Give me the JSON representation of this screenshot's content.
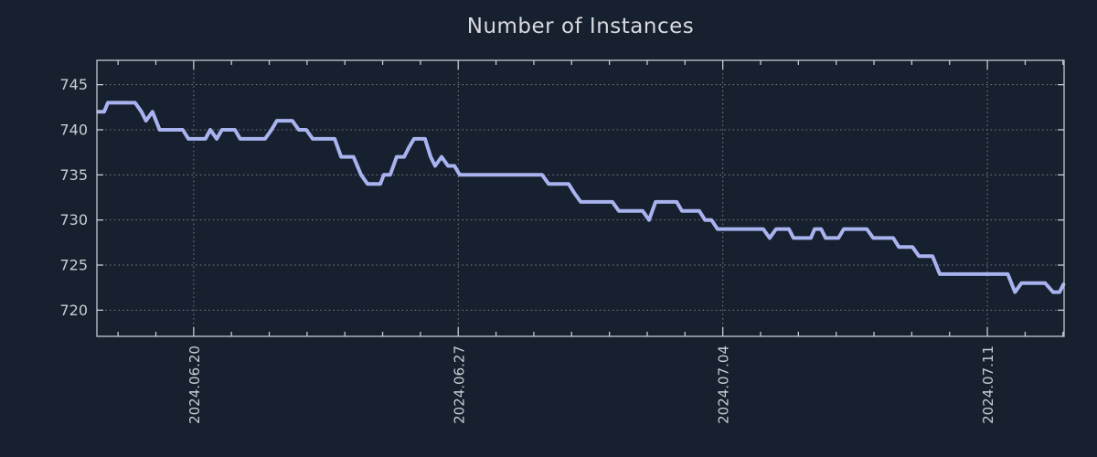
{
  "title": "Number of Instances",
  "colors": {
    "background": "#17202e",
    "line": "#a9b3ef",
    "frame": "#c5cad2",
    "grid": "#7b828d",
    "tick_label": "#c9cdd4",
    "title_text": "#d8dbe0"
  },
  "chart_data": {
    "type": "line",
    "title": "Number of Instances",
    "legend": "none",
    "grid": "dotted gridlines at major ticks only, boxed frame, inward ticks",
    "x_axis": {
      "unit": "date",
      "epoch_day0": "2024-06-17",
      "range_days": [
        0.44,
        26.03
      ],
      "major_ticks": [
        {
          "day": 3,
          "label": "2024.06.20"
        },
        {
          "day": 10,
          "label": "2024.06.27"
        },
        {
          "day": 17,
          "label": "2024.07.04"
        },
        {
          "day": 24,
          "label": "2024.07.11"
        }
      ],
      "minor_tick_every_days": 1,
      "label_rotation_deg": 90
    },
    "y_axis": {
      "range": [
        717.1,
        747.7
      ],
      "ticks": [
        720,
        725,
        730,
        735,
        740,
        745
      ]
    },
    "series": [
      {
        "name": "Number of Instances",
        "color": "#a9b3ef",
        "points_day_value": [
          [
            0.44,
            742
          ],
          [
            0.63,
            742
          ],
          [
            0.73,
            743
          ],
          [
            1.45,
            743
          ],
          [
            1.62,
            742
          ],
          [
            1.74,
            741
          ],
          [
            1.91,
            742
          ],
          [
            2.1,
            740
          ],
          [
            2.71,
            740
          ],
          [
            2.86,
            739
          ],
          [
            3.31,
            739
          ],
          [
            3.44,
            740
          ],
          [
            3.61,
            739
          ],
          [
            3.75,
            740
          ],
          [
            4.09,
            740
          ],
          [
            4.23,
            739
          ],
          [
            4.89,
            739
          ],
          [
            5.06,
            740
          ],
          [
            5.2,
            741
          ],
          [
            5.61,
            741
          ],
          [
            5.78,
            740
          ],
          [
            5.98,
            740
          ],
          [
            6.15,
            739
          ],
          [
            6.73,
            739
          ],
          [
            6.9,
            737
          ],
          [
            7.23,
            737
          ],
          [
            7.43,
            735
          ],
          [
            7.6,
            734
          ],
          [
            7.94,
            734
          ],
          [
            8.03,
            735
          ],
          [
            8.2,
            735
          ],
          [
            8.37,
            737
          ],
          [
            8.57,
            737
          ],
          [
            8.69,
            738
          ],
          [
            8.83,
            739
          ],
          [
            9.12,
            739
          ],
          [
            9.27,
            737
          ],
          [
            9.39,
            736
          ],
          [
            9.56,
            737
          ],
          [
            9.73,
            736
          ],
          [
            9.9,
            736
          ],
          [
            10.04,
            735
          ],
          [
            12.22,
            735
          ],
          [
            12.39,
            734
          ],
          [
            12.92,
            734
          ],
          [
            13.07,
            733
          ],
          [
            13.24,
            732
          ],
          [
            14.08,
            732
          ],
          [
            14.25,
            731
          ],
          [
            14.88,
            731
          ],
          [
            15.05,
            730
          ],
          [
            15.22,
            732
          ],
          [
            15.78,
            732
          ],
          [
            15.92,
            731
          ],
          [
            16.38,
            731
          ],
          [
            16.53,
            730
          ],
          [
            16.7,
            730
          ],
          [
            16.86,
            729
          ],
          [
            18.07,
            729
          ],
          [
            18.24,
            728
          ],
          [
            18.41,
            729
          ],
          [
            18.75,
            729
          ],
          [
            18.87,
            728
          ],
          [
            19.33,
            728
          ],
          [
            19.43,
            729
          ],
          [
            19.6,
            729
          ],
          [
            19.72,
            728
          ],
          [
            20.06,
            728
          ],
          [
            20.2,
            729
          ],
          [
            20.81,
            729
          ],
          [
            20.98,
            728
          ],
          [
            21.51,
            728
          ],
          [
            21.66,
            727
          ],
          [
            22.02,
            727
          ],
          [
            22.19,
            726
          ],
          [
            22.55,
            726
          ],
          [
            22.74,
            724
          ],
          [
            24.54,
            724
          ],
          [
            24.73,
            722
          ],
          [
            24.9,
            723
          ],
          [
            25.53,
            723
          ],
          [
            25.74,
            722
          ],
          [
            25.91,
            722
          ],
          [
            26.03,
            723
          ]
        ]
      }
    ]
  }
}
